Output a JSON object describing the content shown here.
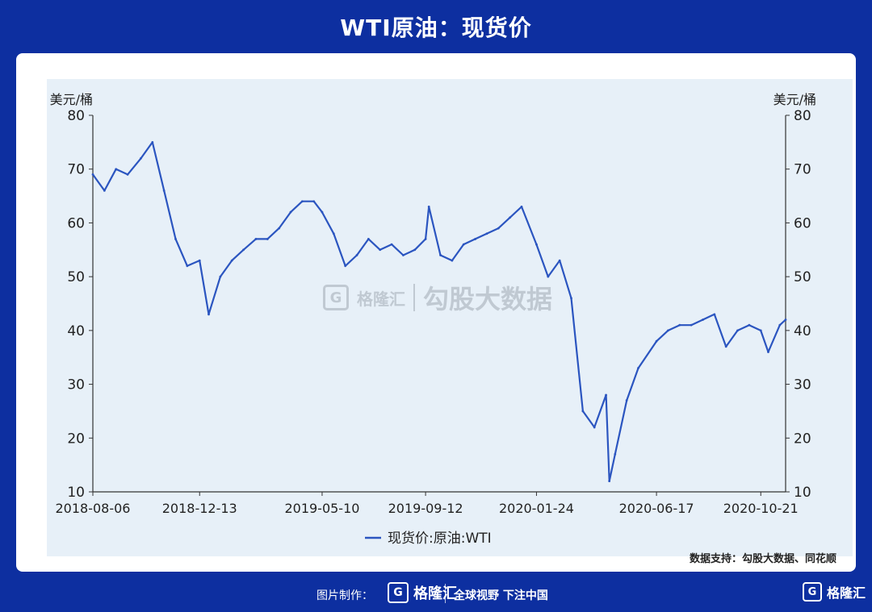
{
  "header": {
    "title": "WTI原油：现货价"
  },
  "chart_data": {
    "type": "line",
    "y_unit_left": "美元/桶",
    "y_unit_right": "美元/桶",
    "ylim": [
      10,
      80
    ],
    "yticks": [
      10,
      20,
      30,
      40,
      50,
      60,
      70,
      80
    ],
    "xticks": [
      "2018-08-06",
      "2018-12-13",
      "2019-05-10",
      "2019-09-12",
      "2020-01-24",
      "2020-06-17",
      "2020-10-21"
    ],
    "legend": {
      "position": "bottom-center"
    },
    "grid": false,
    "series": [
      {
        "name": "现货价:原油:WTI",
        "color": "#2b55c0",
        "x": [
          "2018-08-06",
          "2018-08-20",
          "2018-09-03",
          "2018-09-17",
          "2018-10-03",
          "2018-10-17",
          "2018-10-31",
          "2018-11-14",
          "2018-11-28",
          "2018-12-13",
          "2018-12-24",
          "2019-01-07",
          "2019-01-21",
          "2019-02-04",
          "2019-02-19",
          "2019-03-05",
          "2019-03-19",
          "2019-04-02",
          "2019-04-16",
          "2019-04-30",
          "2019-05-10",
          "2019-05-24",
          "2019-06-07",
          "2019-06-21",
          "2019-07-05",
          "2019-07-19",
          "2019-08-02",
          "2019-08-16",
          "2019-08-30",
          "2019-09-12",
          "2019-09-16",
          "2019-09-30",
          "2019-10-14",
          "2019-10-28",
          "2019-11-11",
          "2019-11-25",
          "2019-12-09",
          "2019-12-23",
          "2020-01-06",
          "2020-01-24",
          "2020-02-07",
          "2020-02-21",
          "2020-03-06",
          "2020-03-20",
          "2020-04-03",
          "2020-04-17",
          "2020-04-21",
          "2020-04-28",
          "2020-05-12",
          "2020-05-26",
          "2020-06-17",
          "2020-07-01",
          "2020-07-15",
          "2020-07-29",
          "2020-08-12",
          "2020-08-26",
          "2020-09-09",
          "2020-09-23",
          "2020-10-07",
          "2020-10-21",
          "2020-10-30",
          "2020-11-13",
          "2020-11-20"
        ],
        "values": [
          69,
          66,
          70,
          69,
          72,
          75,
          66,
          57,
          52,
          53,
          43,
          50,
          53,
          55,
          57,
          57,
          59,
          62,
          64,
          64,
          62,
          58,
          52,
          54,
          57,
          55,
          56,
          54,
          55,
          57,
          63,
          54,
          53,
          56,
          57,
          58,
          59,
          61,
          63,
          56,
          50,
          53,
          46,
          25,
          22,
          28,
          12,
          17,
          27,
          33,
          38,
          40,
          41,
          41,
          42,
          43,
          37,
          40,
          41,
          40,
          36,
          41,
          42
        ]
      }
    ]
  },
  "watermark": {
    "brand": "格隆汇",
    "brand_url": "www.gelonghui.com",
    "product": "勾股大数据"
  },
  "source": "数据支持：勾股大数据、同花顺",
  "footer": {
    "credit": "图片制作：",
    "brand": "格隆汇",
    "slogan": "全球视野 下注中国",
    "corner_brand": "格隆汇",
    "logo_letter": "G"
  }
}
